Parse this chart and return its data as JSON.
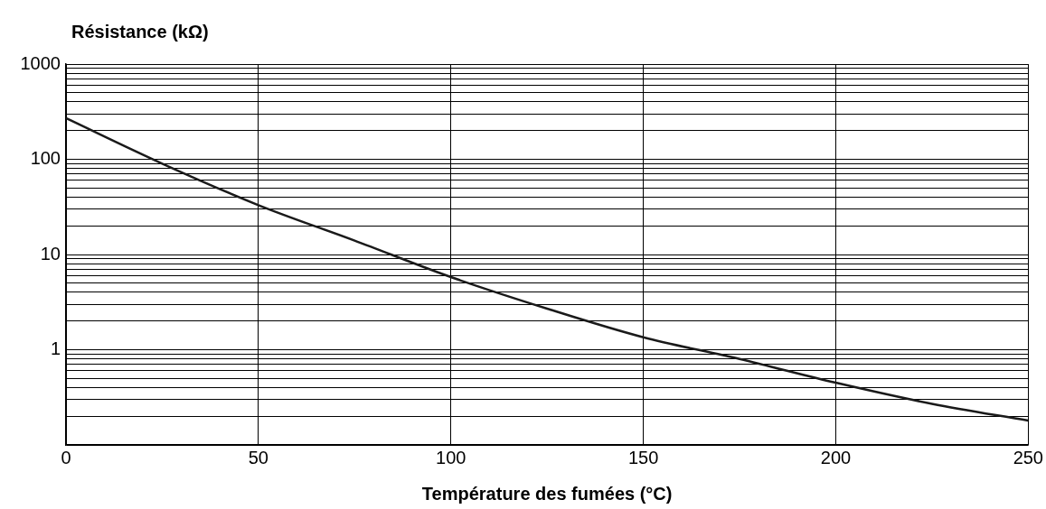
{
  "chart_data": {
    "type": "line",
    "xlabel": "Température des fumées (°C)",
    "ylabel": "Résistance (kΩ)",
    "log": "y",
    "grid": true,
    "legend": false,
    "marker": "none",
    "line_style": "solid",
    "x": [
      0,
      25,
      50,
      75,
      100,
      125,
      150,
      175,
      200,
      225,
      250
    ],
    "series": [
      {
        "color": "#1a1a1a",
        "values": [
          270,
          90,
          33,
          14,
          5.8,
          2.7,
          1.35,
          0.8,
          0.45,
          0.27,
          0.18
        ]
      }
    ],
    "xlim": [
      0,
      250
    ],
    "xticks": [
      0,
      50,
      100,
      150,
      200,
      250
    ],
    "ylim": [
      0.1,
      1000
    ],
    "yticks": [
      {
        "value": 0.1,
        "label": null
      },
      {
        "value": 0.2,
        "label": null
      },
      {
        "value": 0.3,
        "label": null
      },
      {
        "value": 0.4,
        "label": null
      },
      {
        "value": 0.5,
        "label": null
      },
      {
        "value": 0.6,
        "label": null
      },
      {
        "value": 0.7,
        "label": null
      },
      {
        "value": 0.8,
        "label": null
      },
      {
        "value": 0.9,
        "label": null
      },
      1,
      {
        "value": 2,
        "label": null
      },
      {
        "value": 3,
        "label": null
      },
      {
        "value": 4,
        "label": null
      },
      {
        "value": 5,
        "label": null
      },
      {
        "value": 6,
        "label": null
      },
      {
        "value": 7,
        "label": null
      },
      {
        "value": 8,
        "label": null
      },
      {
        "value": 9,
        "label": null
      },
      10,
      {
        "value": 20,
        "label": null
      },
      {
        "value": 30,
        "label": null
      },
      {
        "value": 40,
        "label": null
      },
      {
        "value": 50,
        "label": null
      },
      {
        "value": 60,
        "label": null
      },
      {
        "value": 70,
        "label": null
      },
      {
        "value": 80,
        "label": null
      },
      {
        "value": 90,
        "label": null
      },
      100,
      {
        "value": 200,
        "label": null
      },
      {
        "value": 300,
        "label": null
      },
      {
        "value": 400,
        "label": null
      },
      {
        "value": 500,
        "label": null
      },
      {
        "value": 600,
        "label": null
      },
      {
        "value": 700,
        "label": null
      },
      {
        "value": 800,
        "label": null
      },
      {
        "value": 900,
        "label": null
      },
      1000
    ]
  }
}
